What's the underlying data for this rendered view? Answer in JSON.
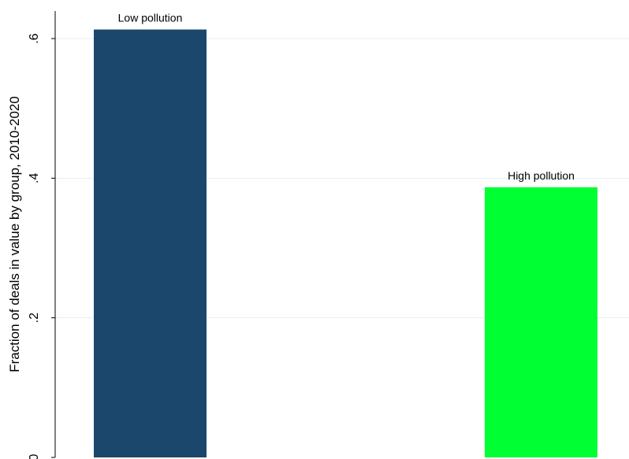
{
  "chart_data": {
    "type": "bar",
    "title": "",
    "xlabel": "",
    "ylabel": "Fraction of deals in value by group, 2010-2020",
    "ylim": [
      0,
      0.6
    ],
    "yticks": [
      {
        "value": 0,
        "label": "0"
      },
      {
        "value": 0.2,
        "label": ".2"
      },
      {
        "value": 0.4,
        "label": ".4"
      },
      {
        "value": 0.6,
        "label": ".6"
      }
    ],
    "grid": true,
    "categories": [
      "Low pollution",
      "High pollution"
    ],
    "values": [
      0.613,
      0.387
    ],
    "colors": [
      "#1c476c",
      "#00ff33"
    ],
    "bar_labels": [
      "Low pollution",
      "High pollution"
    ]
  }
}
